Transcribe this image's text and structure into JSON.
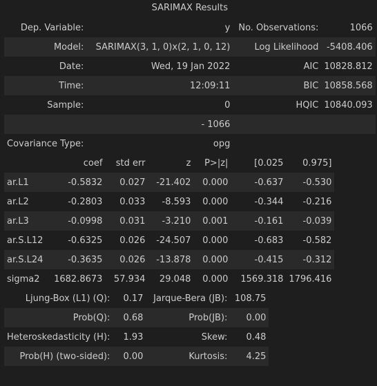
{
  "caption": "SARIMAX Results",
  "summary": [
    [
      "Dep. Variable:",
      "y",
      "No. Observations:",
      "1066"
    ],
    [
      "Model:",
      "SARIMAX(3, 1, 0)x(2, 1, 0, 12)",
      "Log Likelihood",
      "-5408.406"
    ],
    [
      "Date:",
      "Wed, 19 Jan 2022",
      "AIC",
      "10828.812"
    ],
    [
      "Time:",
      "12:09:11",
      "BIC",
      "10858.568"
    ],
    [
      "Sample:",
      "0",
      "HQIC",
      "10840.093"
    ],
    [
      "",
      "- 1066",
      "",
      ""
    ],
    [
      "Covariance Type:",
      "opg",
      "",
      ""
    ]
  ],
  "coef_table": {
    "headers": [
      "",
      "coef",
      "std err",
      "z",
      "P>|z|",
      "[0.025",
      "0.975]"
    ],
    "rows": [
      [
        "ar.L1",
        "-0.5832",
        "0.027",
        "-21.402",
        "0.000",
        "-0.637",
        "-0.530"
      ],
      [
        "ar.L2",
        "-0.2803",
        "0.033",
        "-8.593",
        "0.000",
        "-0.344",
        "-0.216"
      ],
      [
        "ar.L3",
        "-0.0998",
        "0.031",
        "-3.210",
        "0.001",
        "-0.161",
        "-0.039"
      ],
      [
        "ar.S.L12",
        "-0.6325",
        "0.026",
        "-24.507",
        "0.000",
        "-0.683",
        "-0.582"
      ],
      [
        "ar.S.L24",
        "-0.3635",
        "0.026",
        "-13.878",
        "0.000",
        "-0.415",
        "-0.312"
      ],
      [
        "sigma2",
        "1682.8673",
        "57.934",
        "29.048",
        "0.000",
        "1569.318",
        "1796.416"
      ]
    ]
  },
  "diagnostics": [
    [
      "Ljung-Box (L1) (Q):",
      "0.17",
      "Jarque-Bera (JB):",
      "108.75"
    ],
    [
      "Prob(Q):",
      "0.68",
      "Prob(JB):",
      "0.00"
    ],
    [
      "Heteroskedasticity (H):",
      "1.93",
      "Skew:",
      "0.48"
    ],
    [
      "Prob(H) (two-sided):",
      "0.00",
      "Kurtosis:",
      "4.25"
    ]
  ]
}
